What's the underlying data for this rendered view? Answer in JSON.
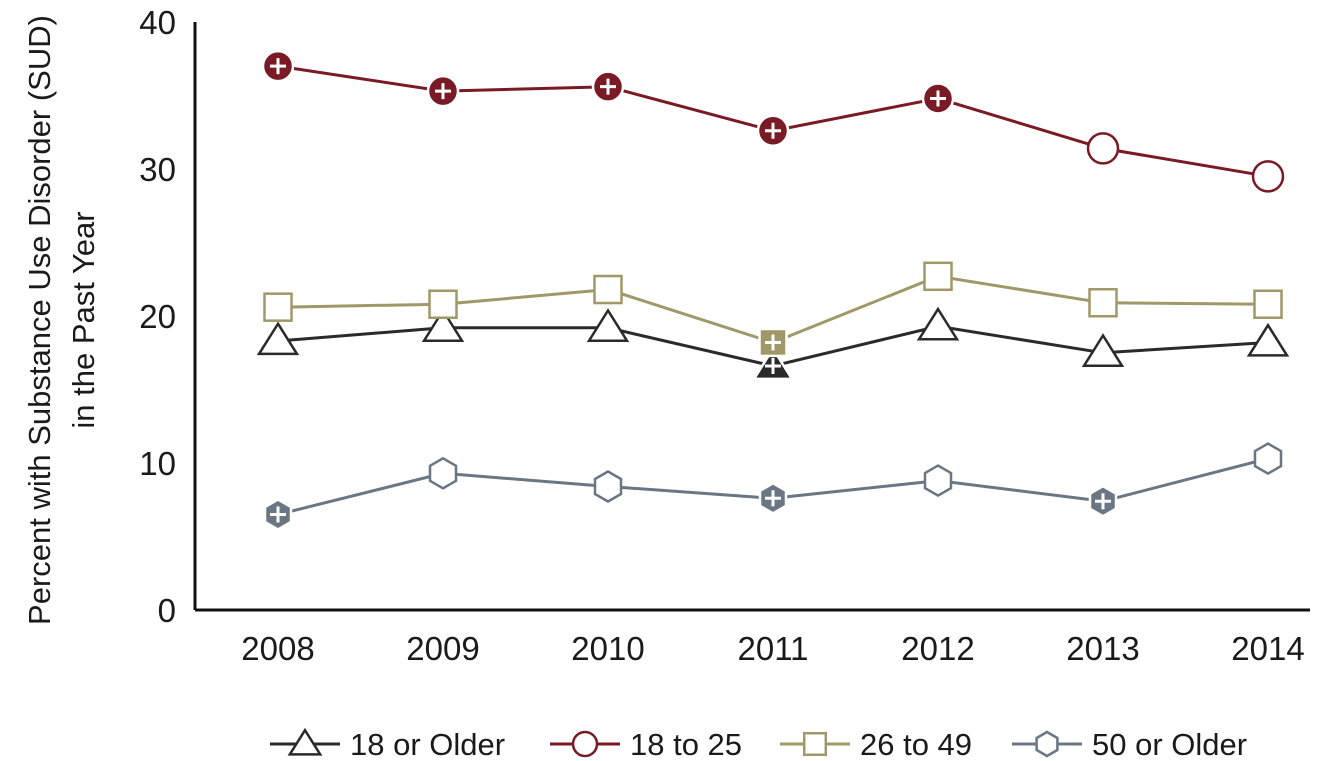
{
  "chart_data": {
    "type": "line",
    "title": "",
    "ylabel_lines": [
      "Percent with Substance Use Disorder (SUD)",
      "in the Past Year"
    ],
    "xlabel": "",
    "x": [
      "2008",
      "2009",
      "2010",
      "2011",
      "2012",
      "2013",
      "2014"
    ],
    "ylim": [
      0,
      40
    ],
    "yticks": [
      0,
      10,
      20,
      30,
      40
    ],
    "grid": false,
    "legend_position": "bottom",
    "series": [
      {
        "name": "18 or Older",
        "values": [
          18.3,
          19.2,
          19.2,
          16.6,
          19.3,
          17.5,
          18.2
        ],
        "significant": [
          false,
          false,
          false,
          true,
          false,
          false,
          false
        ],
        "marker": "triangle",
        "color": "#2a2a2a"
      },
      {
        "name": "18 to 25",
        "values": [
          37.0,
          35.3,
          35.6,
          32.6,
          34.8,
          31.4,
          29.5
        ],
        "significant": [
          true,
          true,
          true,
          true,
          true,
          false,
          false
        ],
        "marker": "circle",
        "color": "#7a1a24"
      },
      {
        "name": "26 to 49",
        "values": [
          20.6,
          20.8,
          21.8,
          18.2,
          22.7,
          20.9,
          20.8
        ],
        "significant": [
          false,
          false,
          false,
          true,
          false,
          false,
          false
        ],
        "marker": "square",
        "color": "#a09868"
      },
      {
        "name": "50 or Older",
        "values": [
          6.5,
          9.3,
          8.4,
          7.6,
          8.8,
          7.4,
          10.3
        ],
        "significant": [
          true,
          false,
          false,
          true,
          false,
          true,
          false
        ],
        "marker": "hexagon",
        "color": "#6a7684"
      }
    ]
  }
}
